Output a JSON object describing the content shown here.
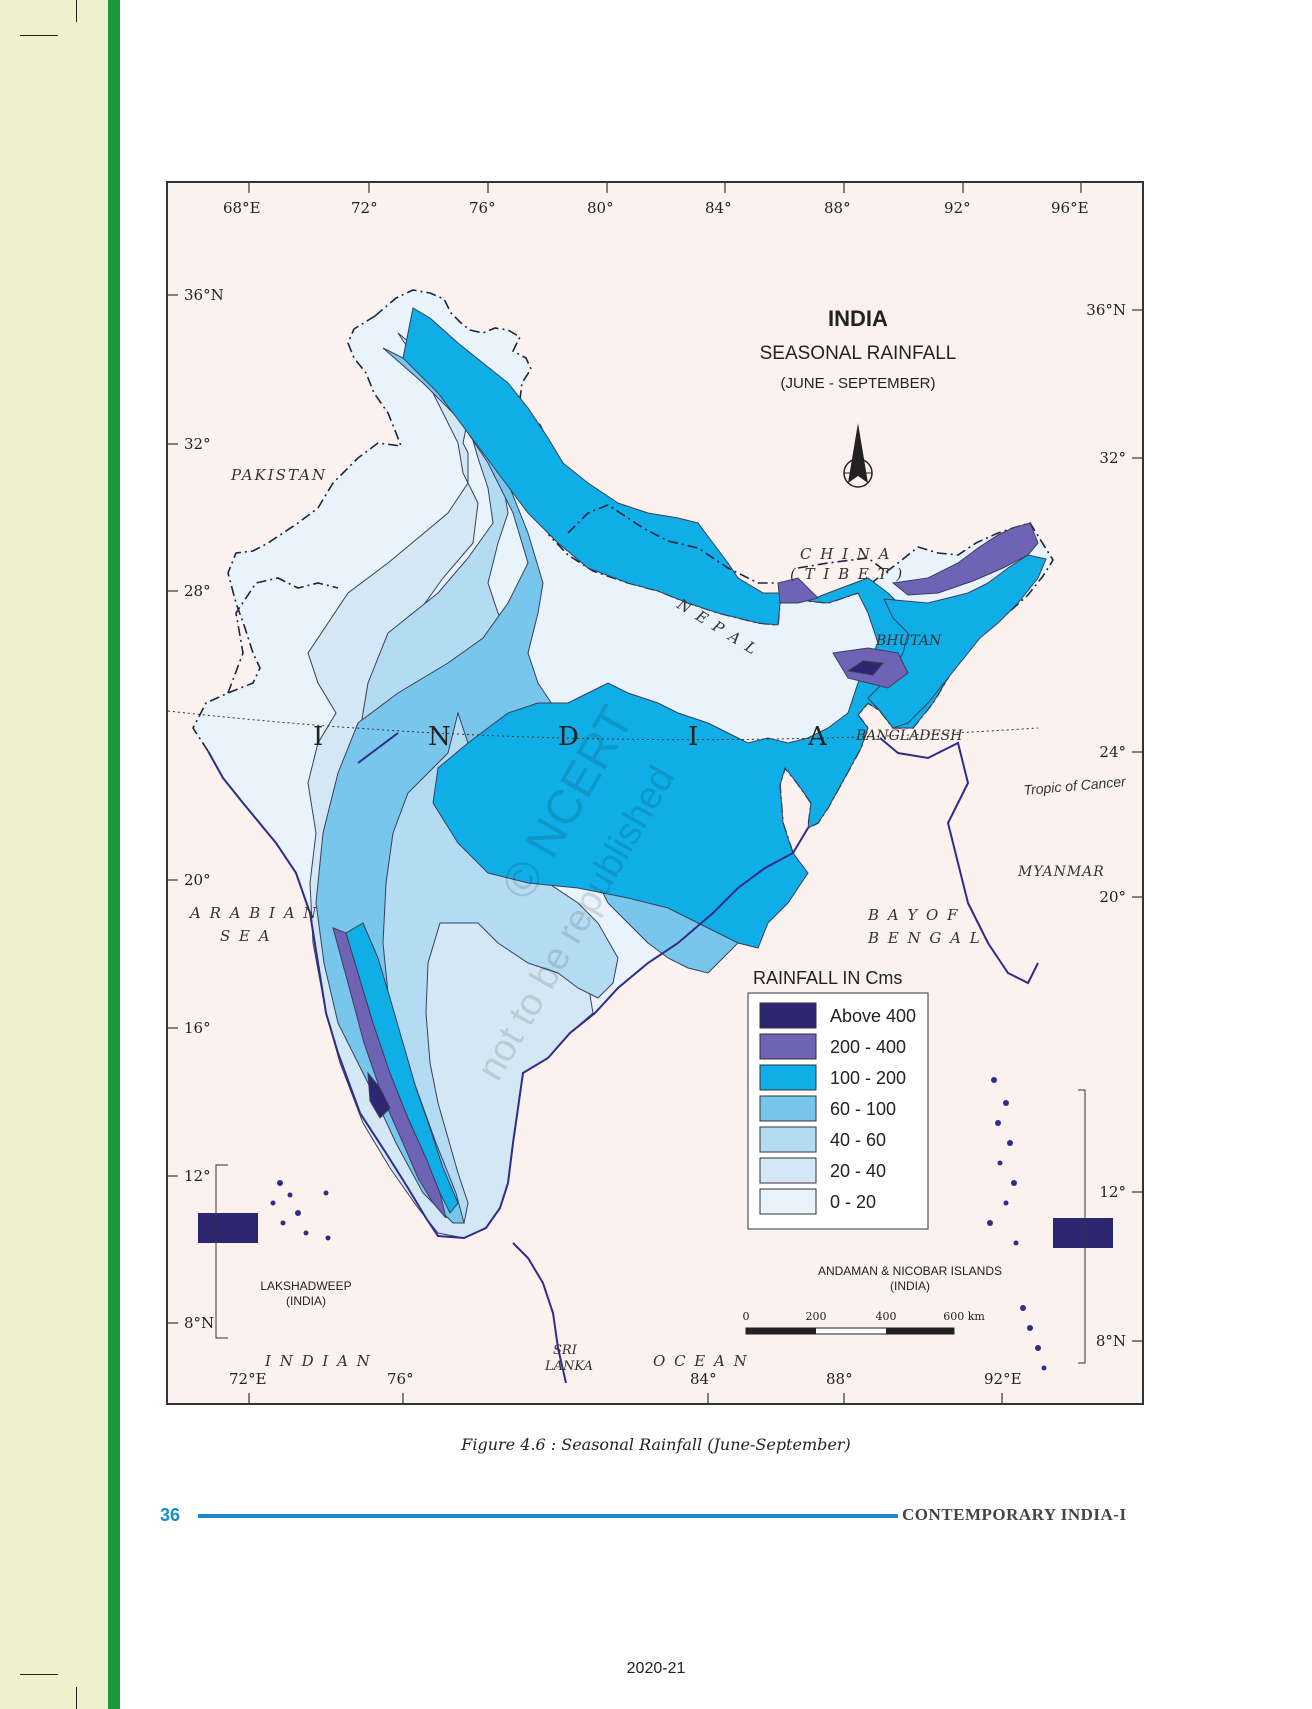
{
  "map": {
    "title": "INDIA",
    "subtitle": "SEASONAL RAINFALL",
    "period": "(JUNE - SEPTEMBER)",
    "top_longitudes": [
      "68°E",
      "72°",
      "76°",
      "80°",
      "84°",
      "88°",
      "92°",
      "96°E"
    ],
    "bottom_longitudes": [
      "72°E",
      "76°",
      "84°",
      "88°",
      "92°E"
    ],
    "left_latitudes": [
      "36°N",
      "32°",
      "28°",
      "20°",
      "16°",
      "12°",
      "8°N"
    ],
    "right_latitudes": [
      "36°N",
      "32°",
      "24°",
      "20°",
      "12°",
      "8°N"
    ],
    "country_letters": [
      "I",
      "N",
      "D",
      "I",
      "A"
    ],
    "labels": {
      "pakistan": "PAKISTAN",
      "china": "C H I N A",
      "tibet": "( T I B E T )",
      "nepal": "N E P A L",
      "bhutan": "BHUTAN",
      "bangladesh": "BANGLADESH",
      "myanmar": "MYANMAR",
      "tropic": "Tropic of Cancer",
      "arabian": "A R A B I A N",
      "sea": "S E A",
      "bay_of": "B A Y   O F",
      "bengal": "B E N G A L",
      "indian": "I N D I A N",
      "ocean": "O C E A N",
      "sri": "SRI",
      "lanka": "LANKA",
      "lakshadweep": "LAKSHADWEEP",
      "lakshadweep_sub": "(INDIA)",
      "andaman": "ANDAMAN & NICOBAR ISLANDS",
      "andaman_sub": "(INDIA)"
    },
    "watermark": [
      "© NCERT",
      "not to be republished"
    ],
    "legend": {
      "title": "RAINFALL IN Cms",
      "items": [
        {
          "label": "Above 400",
          "color": "#2d2670"
        },
        {
          "label": "200 - 400",
          "color": "#6f63b5"
        },
        {
          "label": "100 - 200",
          "color": "#10aee6"
        },
        {
          "label": "60 - 100",
          "color": "#78c6ec"
        },
        {
          "label": "40 - 60",
          "color": "#b3dcf3"
        },
        {
          "label": "20 - 40",
          "color": "#d4e7f4"
        },
        {
          "label": "0 - 20",
          "color": "#e8f3fb"
        }
      ]
    },
    "scale": {
      "ticks": [
        "0",
        "200",
        "400",
        "600 km"
      ]
    }
  },
  "caption": "Figure 4.6 : Seasonal Rainfall (June-September)",
  "footer": {
    "page_number": "36",
    "book_title": "CONTEMPORARY INDIA-I"
  },
  "year": "2020-21"
}
